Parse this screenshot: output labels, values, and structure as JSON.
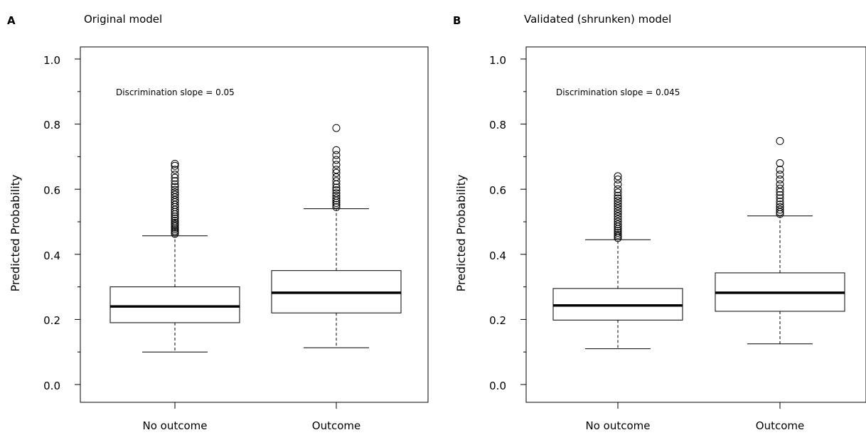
{
  "chart_data": [
    {
      "type": "boxplot",
      "panel_label": "A",
      "title": "Original model",
      "ylabel": "Predicted Probability",
      "ylim": [
        0.0,
        1.0
      ],
      "yticks": [
        "0.0",
        "0.2",
        "0.4",
        "0.6",
        "0.8",
        "1.0"
      ],
      "categories": [
        "No outcome",
        "Outcome"
      ],
      "annotation": "Discrimination slope = 0.05",
      "boxes": [
        {
          "category": "No outcome",
          "whisker_low": 0.1,
          "q1": 0.19,
          "median": 0.24,
          "q3": 0.3,
          "whisker_high": 0.457,
          "outliers": [
            0.463,
            0.468,
            0.472,
            0.477,
            0.482,
            0.487,
            0.492,
            0.497,
            0.503,
            0.51,
            0.516,
            0.523,
            0.53,
            0.537,
            0.545,
            0.552,
            0.56,
            0.567,
            0.575,
            0.583,
            0.59,
            0.598,
            0.607,
            0.615,
            0.625,
            0.635,
            0.645,
            0.66,
            0.672,
            0.678
          ]
        },
        {
          "category": "Outcome",
          "whisker_low": 0.113,
          "q1": 0.22,
          "median": 0.282,
          "q3": 0.35,
          "whisker_high": 0.54,
          "outliers": [
            0.545,
            0.552,
            0.558,
            0.565,
            0.572,
            0.58,
            0.588,
            0.597,
            0.605,
            0.615,
            0.625,
            0.637,
            0.65,
            0.66,
            0.675,
            0.69,
            0.705,
            0.72,
            0.788
          ]
        }
      ]
    },
    {
      "type": "boxplot",
      "panel_label": "B",
      "title": "Validated (shrunken) model",
      "ylabel": "Predicted Probability",
      "ylim": [
        0.0,
        1.0
      ],
      "yticks": [
        "0.0",
        "0.2",
        "0.4",
        "0.6",
        "0.8",
        "1.0"
      ],
      "categories": [
        "No outcome",
        "Outcome"
      ],
      "annotation": "Discrimination slope = 0.045",
      "boxes": [
        {
          "category": "No outcome",
          "whisker_low": 0.11,
          "q1": 0.198,
          "median": 0.243,
          "q3": 0.295,
          "whisker_high": 0.445,
          "outliers": [
            0.45,
            0.455,
            0.46,
            0.466,
            0.472,
            0.478,
            0.485,
            0.492,
            0.5,
            0.508,
            0.516,
            0.524,
            0.532,
            0.54,
            0.548,
            0.556,
            0.564,
            0.572,
            0.58,
            0.59,
            0.6,
            0.615,
            0.63,
            0.64
          ]
        },
        {
          "category": "Outcome",
          "whisker_low": 0.125,
          "q1": 0.225,
          "median": 0.282,
          "q3": 0.343,
          "whisker_high": 0.518,
          "outliers": [
            0.524,
            0.53,
            0.537,
            0.545,
            0.553,
            0.562,
            0.572,
            0.582,
            0.592,
            0.602,
            0.615,
            0.63,
            0.645,
            0.66,
            0.68,
            0.748
          ]
        }
      ]
    }
  ]
}
